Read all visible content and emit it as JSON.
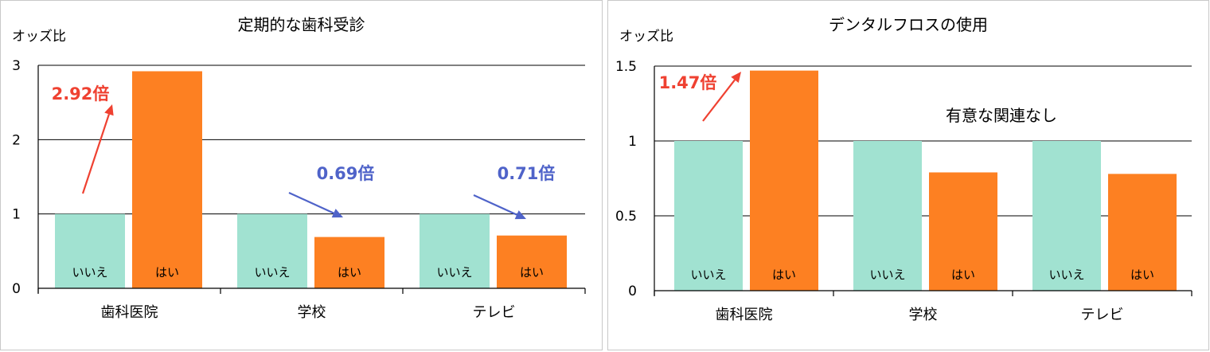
{
  "chart_data": [
    {
      "type": "bar",
      "title": "定期的な歯科受診",
      "ylabel": "オッズ比",
      "ylim": [
        0,
        3
      ],
      "yticks": [
        0,
        1,
        2,
        3
      ],
      "categories": [
        "歯科医院",
        "学校",
        "テレビ"
      ],
      "series": [
        {
          "name": "いいえ",
          "color": "#a1e2d1",
          "values": [
            1,
            1,
            1
          ]
        },
        {
          "name": "はい",
          "color": "#fd8022",
          "values": [
            2.92,
            0.69,
            0.71
          ]
        }
      ],
      "annotations": [
        {
          "text": "2.92倍",
          "category": 0,
          "color": "#ef4131",
          "direction": "up"
        },
        {
          "text": "0.69倍",
          "category": 1,
          "color": "#4f63c9",
          "direction": "down"
        },
        {
          "text": "0.71倍",
          "category": 2,
          "color": "#4f63c9",
          "direction": "down"
        }
      ],
      "note": "",
      "grid": true
    },
    {
      "type": "bar",
      "title": "デンタルフロスの使用",
      "ylabel": "オッズ比",
      "ylim": [
        0,
        1.5
      ],
      "yticks": [
        0,
        0.5,
        1,
        1.5
      ],
      "categories": [
        "歯科医院",
        "学校",
        "テレビ"
      ],
      "series": [
        {
          "name": "いいえ",
          "color": "#a1e2d1",
          "values": [
            1,
            1,
            1
          ]
        },
        {
          "name": "はい",
          "color": "#fd8022",
          "values": [
            1.47,
            0.79,
            0.78
          ]
        }
      ],
      "annotations": [
        {
          "text": "1.47倍",
          "category": 0,
          "color": "#ef4131",
          "direction": "up"
        }
      ],
      "note": "有意な関連なし",
      "grid": true
    }
  ]
}
